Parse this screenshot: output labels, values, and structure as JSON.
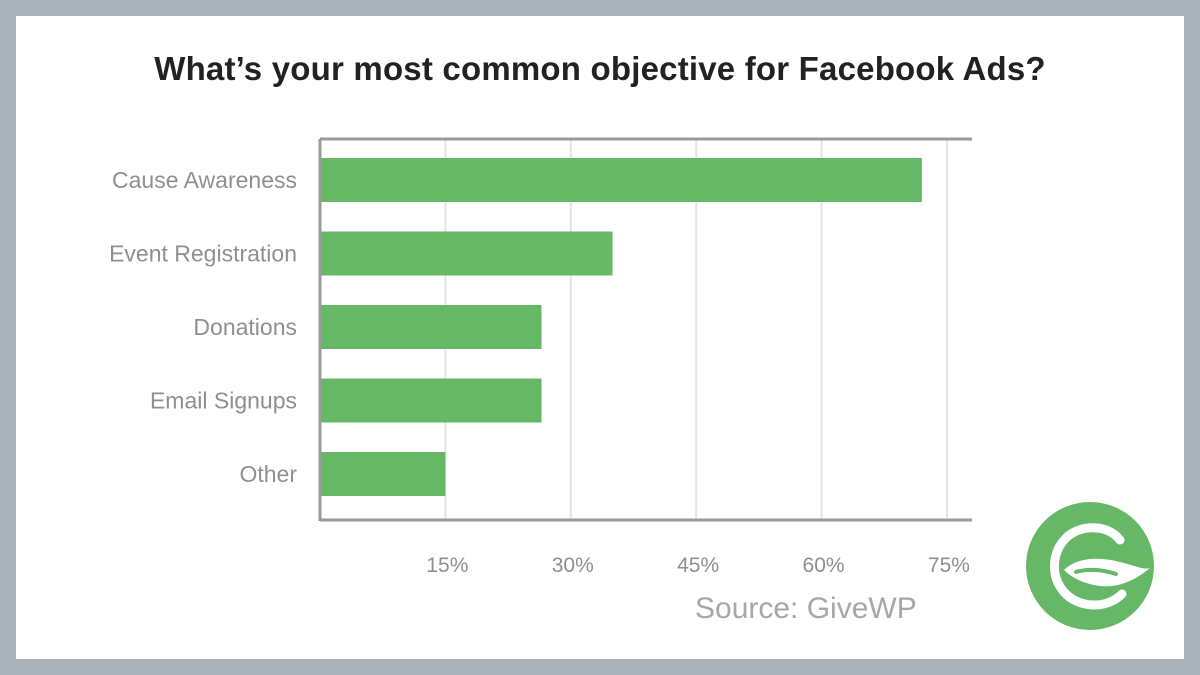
{
  "colors": {
    "bar": "#66b866",
    "axis": "#9a9a9a",
    "grid": "#e3e3e3",
    "label": "#8f8f8f",
    "title": "#222222",
    "logo": "#66b866"
  },
  "logo_icon": "givewp-logo-icon",
  "source": "Source: GiveWP",
  "chart_data": {
    "type": "bar",
    "orientation": "horizontal",
    "title": "What’s your most common objective for Facebook Ads?",
    "xlabel": "",
    "ylabel": "",
    "categories": [
      "Cause Awareness",
      "Event Registration",
      "Donations",
      "Email Signups",
      "Other"
    ],
    "values": [
      72,
      35,
      26.5,
      26.5,
      15
    ],
    "unit": "%",
    "xlim": [
      0,
      78
    ],
    "xticks": [
      15,
      30,
      45,
      60,
      75
    ],
    "xtick_labels": [
      "15%",
      "30%",
      "45%",
      "60%",
      "75%"
    ],
    "grid": "vertical",
    "legend": "none"
  }
}
